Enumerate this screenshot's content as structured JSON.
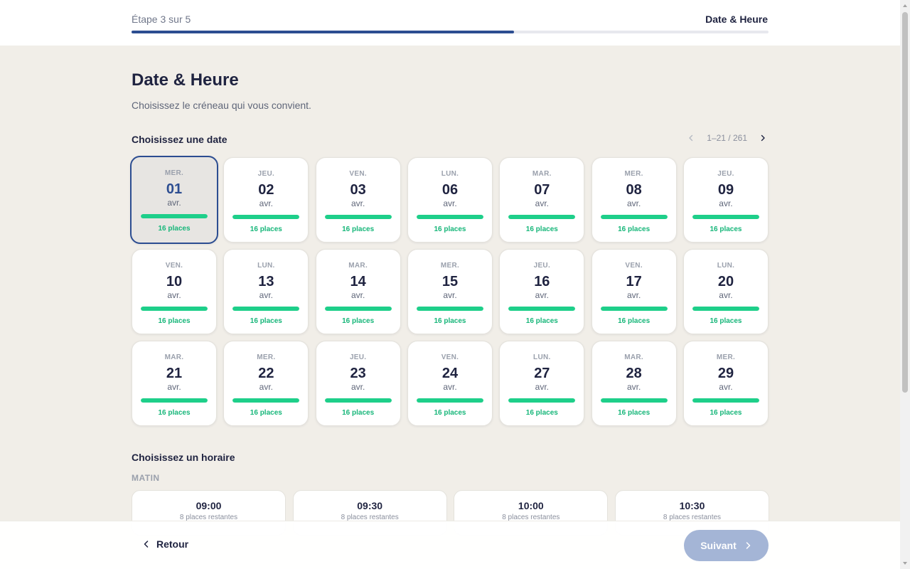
{
  "header": {
    "step_label": "Étape 3 sur 5",
    "step_title": "Date & Heure",
    "progress": 0.6
  },
  "page": {
    "title": "Date & Heure",
    "subtitle": "Choisissez le créneau qui vous convient."
  },
  "date_section": {
    "label": "Choisissez une date",
    "pager_text": "1–21 / 261",
    "selected_index": 0,
    "dates": [
      {
        "dow": "MER.",
        "day": "01",
        "month": "avr.",
        "places": "16 places"
      },
      {
        "dow": "JEU.",
        "day": "02",
        "month": "avr.",
        "places": "16 places"
      },
      {
        "dow": "VEN.",
        "day": "03",
        "month": "avr.",
        "places": "16 places"
      },
      {
        "dow": "LUN.",
        "day": "06",
        "month": "avr.",
        "places": "16 places"
      },
      {
        "dow": "MAR.",
        "day": "07",
        "month": "avr.",
        "places": "16 places"
      },
      {
        "dow": "MER.",
        "day": "08",
        "month": "avr.",
        "places": "16 places"
      },
      {
        "dow": "JEU.",
        "day": "09",
        "month": "avr.",
        "places": "16 places"
      },
      {
        "dow": "VEN.",
        "day": "10",
        "month": "avr.",
        "places": "16 places"
      },
      {
        "dow": "LUN.",
        "day": "13",
        "month": "avr.",
        "places": "16 places"
      },
      {
        "dow": "MAR.",
        "day": "14",
        "month": "avr.",
        "places": "16 places"
      },
      {
        "dow": "MER.",
        "day": "15",
        "month": "avr.",
        "places": "16 places"
      },
      {
        "dow": "JEU.",
        "day": "16",
        "month": "avr.",
        "places": "16 places"
      },
      {
        "dow": "VEN.",
        "day": "17",
        "month": "avr.",
        "places": "16 places"
      },
      {
        "dow": "LUN.",
        "day": "20",
        "month": "avr.",
        "places": "16 places"
      },
      {
        "dow": "MAR.",
        "day": "21",
        "month": "avr.",
        "places": "16 places"
      },
      {
        "dow": "MER.",
        "day": "22",
        "month": "avr.",
        "places": "16 places"
      },
      {
        "dow": "JEU.",
        "day": "23",
        "month": "avr.",
        "places": "16 places"
      },
      {
        "dow": "VEN.",
        "day": "24",
        "month": "avr.",
        "places": "16 places"
      },
      {
        "dow": "LUN.",
        "day": "27",
        "month": "avr.",
        "places": "16 places"
      },
      {
        "dow": "MAR.",
        "day": "28",
        "month": "avr.",
        "places": "16 places"
      },
      {
        "dow": "MER.",
        "day": "29",
        "month": "avr.",
        "places": "16 places"
      }
    ]
  },
  "time_section": {
    "label": "Choisissez un horaire",
    "period_label": "MATIN",
    "slots": [
      {
        "time": "09:00",
        "remaining": "8 places restantes"
      },
      {
        "time": "09:30",
        "remaining": "8 places restantes"
      },
      {
        "time": "10:00",
        "remaining": "8 places restantes"
      },
      {
        "time": "10:30",
        "remaining": "8 places restantes"
      }
    ]
  },
  "footer": {
    "back_label": "Retour",
    "next_label": "Suivant"
  },
  "icons": {
    "pager_prev": "chevron-left-icon",
    "pager_next": "chevron-right-icon",
    "back": "chevron-left-icon",
    "next": "chevron-right-icon"
  },
  "colors": {
    "accent": "#2c4d91",
    "availability": "#1ecf8a",
    "places_text": "#16b679",
    "next_button_disabled": "#a4b5d6",
    "page_background": "#f1eee8"
  }
}
